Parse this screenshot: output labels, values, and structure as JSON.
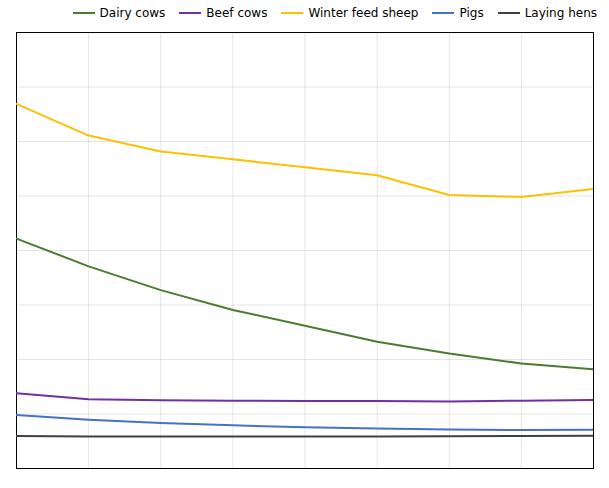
{
  "chart_data": {
    "type": "line",
    "x": [
      1,
      2,
      3,
      4,
      5,
      6,
      7,
      8,
      9
    ],
    "series": [
      {
        "name": "Dairy cows",
        "color": "#4a7c2f",
        "values": [
          5800,
          5100,
          4500,
          4000,
          3600,
          3200,
          2900,
          2650,
          2500
        ]
      },
      {
        "name": "Beef cows",
        "color": "#7030a0",
        "values": [
          1900,
          1750,
          1720,
          1710,
          1700,
          1700,
          1690,
          1710,
          1730
        ]
      },
      {
        "name": "Winter feed sheep",
        "color": "#ffc000",
        "values": [
          9200,
          8400,
          8000,
          7800,
          7600,
          7400,
          6900,
          6850,
          7050
        ]
      },
      {
        "name": "Pigs",
        "color": "#4472c4",
        "values": [
          1350,
          1230,
          1150,
          1090,
          1040,
          1010,
          985,
          970,
          975
        ]
      },
      {
        "name": "Laying hens",
        "color": "#404040",
        "values": [
          820,
          810,
          805,
          805,
          808,
          810,
          812,
          818,
          825
        ]
      }
    ],
    "xlim": [
      1,
      9
    ],
    "ylim": [
      0,
      11000
    ],
    "xticks": [
      1,
      2,
      3,
      4,
      5,
      6,
      7,
      8,
      9
    ],
    "yticks": [
      0,
      1375,
      2750,
      4125,
      5500,
      6875,
      8250,
      9625,
      11000
    ],
    "grid": true,
    "legend": "upper right",
    "tick_labels": false
  }
}
